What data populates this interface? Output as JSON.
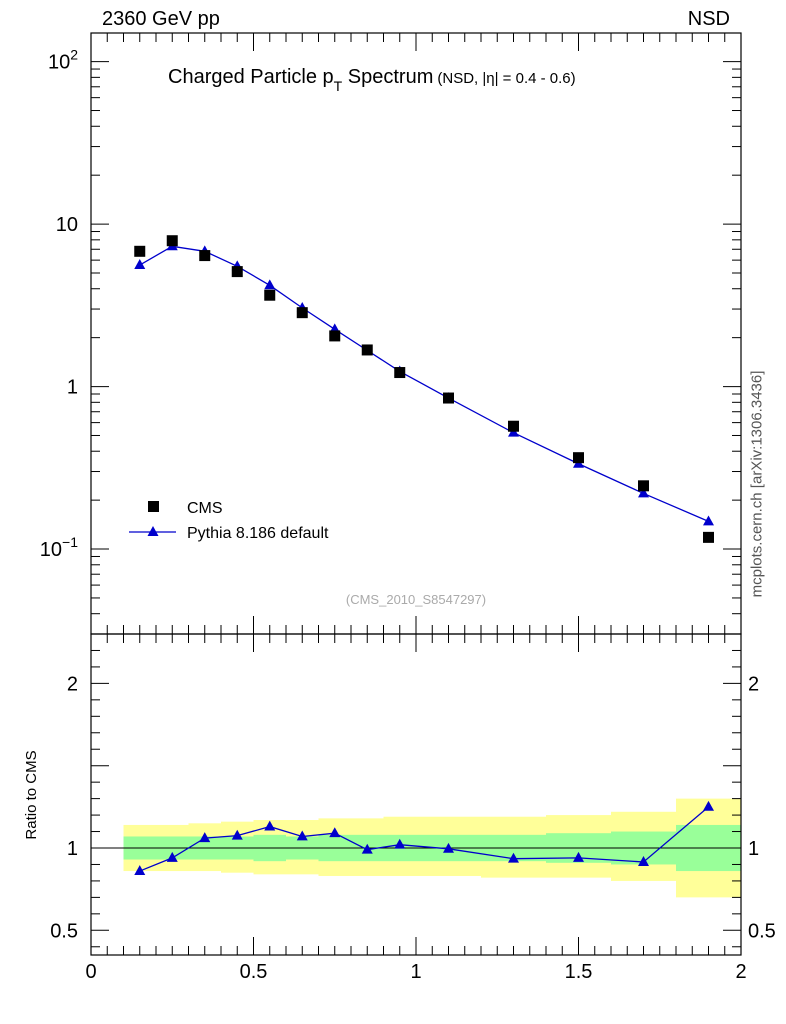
{
  "header": {
    "left": "2360 GeV pp",
    "right": "NSD"
  },
  "watermark": "mcplots.cern.ch [arXiv:1306.3436]",
  "analysis_tag": "(CMS_2010_S8547297)",
  "chart_data": [
    {
      "type": "scatter",
      "title_main": "Charged Particle p",
      "title_sub": "T",
      "title_rest": " Spectrum",
      "title_cond": "(NSD, |η| = 0.4 - 0.6)",
      "xlabel": "",
      "ylabel": "",
      "yscale": "log",
      "xlim": [
        0,
        2
      ],
      "ylim": [
        0.03,
        150
      ],
      "legend_position": "bottom-left",
      "yticks": [
        {
          "base": "10",
          "exp": "−1",
          "value": 0.1
        },
        {
          "base": "1",
          "exp": "",
          "value": 1
        },
        {
          "base": "10",
          "exp": "",
          "value": 10
        },
        {
          "base": "10",
          "exp": "2",
          "value": 100
        }
      ],
      "series": [
        {
          "name": "CMS",
          "marker": "square",
          "color": "#000000",
          "x": [
            0.15,
            0.25,
            0.35,
            0.45,
            0.55,
            0.65,
            0.75,
            0.85,
            0.95,
            1.1,
            1.3,
            1.5,
            1.7,
            1.9
          ],
          "y": [
            6.8,
            7.9,
            6.4,
            5.1,
            3.65,
            2.85,
            2.05,
            1.68,
            1.22,
            0.85,
            0.57,
            0.365,
            0.245,
            0.118
          ]
        },
        {
          "name": "Pythia 8.186 default",
          "marker": "triangle",
          "color": "#0000cc",
          "x": [
            0.15,
            0.25,
            0.35,
            0.45,
            0.55,
            0.65,
            0.75,
            0.85,
            0.95,
            1.1,
            1.3,
            1.5,
            1.7,
            1.9
          ],
          "y": [
            5.6,
            7.3,
            6.8,
            5.5,
            4.2,
            3.05,
            2.25,
            1.67,
            1.24,
            0.85,
            0.52,
            0.335,
            0.22,
            0.148
          ]
        }
      ]
    },
    {
      "type": "line",
      "ylabel": "Ratio to CMS",
      "xlim": [
        0,
        2
      ],
      "ylim": [
        0.35,
        2.3
      ],
      "xticks": [
        "0",
        "0.5",
        "1",
        "1.5",
        "2"
      ],
      "yticks": [
        "0.5",
        "1",
        "2"
      ],
      "reference_line": 1,
      "bands": {
        "x_edges": [
          0.1,
          0.2,
          0.3,
          0.4,
          0.5,
          0.6,
          0.7,
          0.8,
          0.9,
          1.0,
          1.2,
          1.4,
          1.6,
          1.8,
          2.0
        ],
        "inner": {
          "color": "#99ff99",
          "lo": [
            0.93,
            0.93,
            0.93,
            0.93,
            0.92,
            0.93,
            0.92,
            0.92,
            0.92,
            0.92,
            0.92,
            0.91,
            0.9,
            0.86
          ],
          "hi": [
            1.07,
            1.07,
            1.07,
            1.07,
            1.08,
            1.07,
            1.08,
            1.08,
            1.08,
            1.08,
            1.08,
            1.09,
            1.1,
            1.14
          ]
        },
        "outer": {
          "color": "#ffff99",
          "lo": [
            0.86,
            0.86,
            0.86,
            0.85,
            0.84,
            0.84,
            0.83,
            0.83,
            0.83,
            0.83,
            0.82,
            0.82,
            0.8,
            0.7
          ],
          "hi": [
            1.14,
            1.14,
            1.15,
            1.16,
            1.17,
            1.17,
            1.18,
            1.18,
            1.19,
            1.19,
            1.19,
            1.2,
            1.22,
            1.3
          ]
        }
      },
      "series": [
        {
          "name": "Pythia 8.186 default",
          "color": "#0000cc",
          "x": [
            0.15,
            0.25,
            0.35,
            0.45,
            0.55,
            0.65,
            0.75,
            0.85,
            0.95,
            1.1,
            1.3,
            1.5,
            1.7,
            1.9
          ],
          "y": [
            0.86,
            0.94,
            1.06,
            1.075,
            1.13,
            1.07,
            1.09,
            0.99,
            1.02,
            0.995,
            0.935,
            0.94,
            0.915,
            1.25
          ]
        }
      ]
    }
  ]
}
